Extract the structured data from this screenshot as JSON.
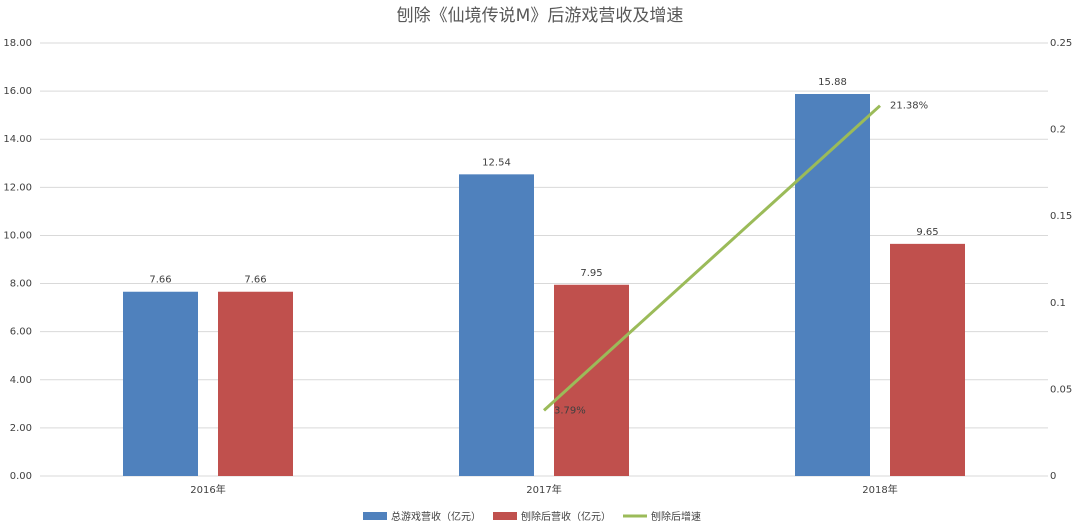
{
  "chart_data": {
    "type": "bar",
    "title": "刨除《仙境传说M》后游戏营收及增速",
    "categories": [
      "2016年",
      "2017年",
      "2018年"
    ],
    "series": [
      {
        "name": "总游戏营收（亿元）",
        "color": "#4f81bd",
        "values": [
          7.66,
          12.54,
          15.88
        ]
      },
      {
        "name": "刨除后营收（亿元）",
        "color": "#c0504d",
        "values": [
          7.66,
          7.95,
          9.65
        ]
      },
      {
        "name": "刨除后增速",
        "color": "#9bbb59",
        "type": "line",
        "axis": "y2",
        "values": [
          null,
          0.0379,
          0.2138
        ],
        "value_labels": [
          null,
          "3.79%",
          "21.38%"
        ]
      }
    ],
    "ylim": [
      0,
      18
    ],
    "yticks": [
      {
        "value": 0,
        "label": "0.00"
      },
      {
        "value": 2,
        "label": "2.00"
      },
      {
        "value": 4,
        "label": "4.00"
      },
      {
        "value": 6,
        "label": "6.00"
      },
      {
        "value": 8,
        "label": "8.00"
      },
      {
        "value": 10,
        "label": "10.00"
      },
      {
        "value": 12,
        "label": "12.00"
      },
      {
        "value": 14,
        "label": "14.00"
      },
      {
        "value": 16,
        "label": "16.00"
      },
      {
        "value": 18,
        "label": "18.00"
      }
    ],
    "y2lim": [
      0,
      0.25
    ],
    "y2ticks": [
      0,
      0.05,
      0.1,
      0.15,
      0.2,
      0.25
    ],
    "grid": true,
    "legend": "bottom"
  }
}
